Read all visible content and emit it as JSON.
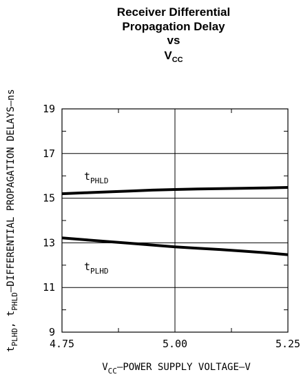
{
  "chart_data": {
    "type": "line",
    "title_lines": [
      "Receiver Differential",
      "Propagation Delay",
      "vs"
    ],
    "title_symbol": {
      "main": "V",
      "sub": "CC"
    },
    "x": [
      4.75,
      4.8,
      4.85,
      4.9,
      4.95,
      5.0,
      5.05,
      5.1,
      5.15,
      5.2,
      5.25
    ],
    "xlim": [
      4.75,
      5.25
    ],
    "ylim": [
      9,
      19
    ],
    "x_ticks": [
      "4.75",
      "5.00",
      "5.25"
    ],
    "y_ticks": [
      "9",
      "11",
      "13",
      "15",
      "17",
      "19"
    ],
    "xlabel": {
      "v": "V",
      "sub": "CC",
      "rest": "–POWER SUPPLY VOLTAGE–V"
    },
    "ylabel": {
      "t1": "t",
      "s1": "PLHD",
      "mid": ", t",
      "s2": "PHLD",
      "rest": "–DIFFERENTIAL PROPAGATION DELAYS–ns"
    },
    "series": [
      {
        "name": "t_PHLD",
        "label_main": "t",
        "label_sub": "PHLD",
        "values": [
          15.2,
          15.24,
          15.28,
          15.32,
          15.36,
          15.39,
          15.41,
          15.43,
          15.44,
          15.46,
          15.48
        ]
      },
      {
        "name": "t_PLHD",
        "label_main": "t",
        "label_sub": "PLHD",
        "values": [
          13.22,
          13.14,
          13.06,
          12.98,
          12.9,
          12.82,
          12.76,
          12.7,
          12.63,
          12.56,
          12.47
        ]
      }
    ],
    "grid": true,
    "line_color": "#000000"
  }
}
